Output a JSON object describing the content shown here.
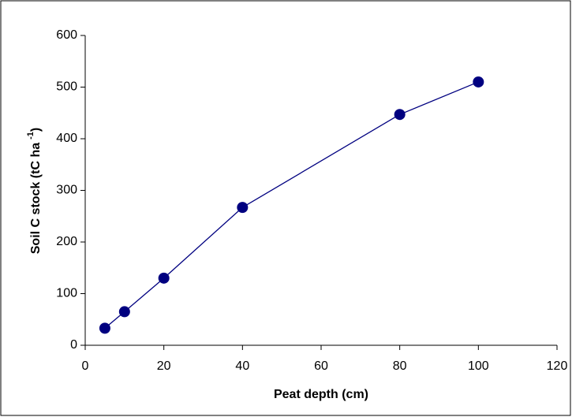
{
  "chart_data": {
    "type": "line",
    "xlabel": "Peat depth (cm)",
    "ylabel": [
      "Soil C stock (tC ha",
      "-1",
      ")"
    ],
    "x": [
      5,
      10,
      20,
      40,
      80,
      100
    ],
    "values": [
      33,
      65,
      130,
      267,
      447,
      510
    ],
    "color": "#000080",
    "xlim": [
      0,
      120
    ],
    "xticks": [
      0,
      20,
      40,
      60,
      80,
      100,
      120
    ],
    "ylim": [
      0,
      600
    ],
    "yticks": [
      0,
      100,
      200,
      300,
      400,
      500,
      600
    ],
    "grid": false,
    "markers": true
  }
}
